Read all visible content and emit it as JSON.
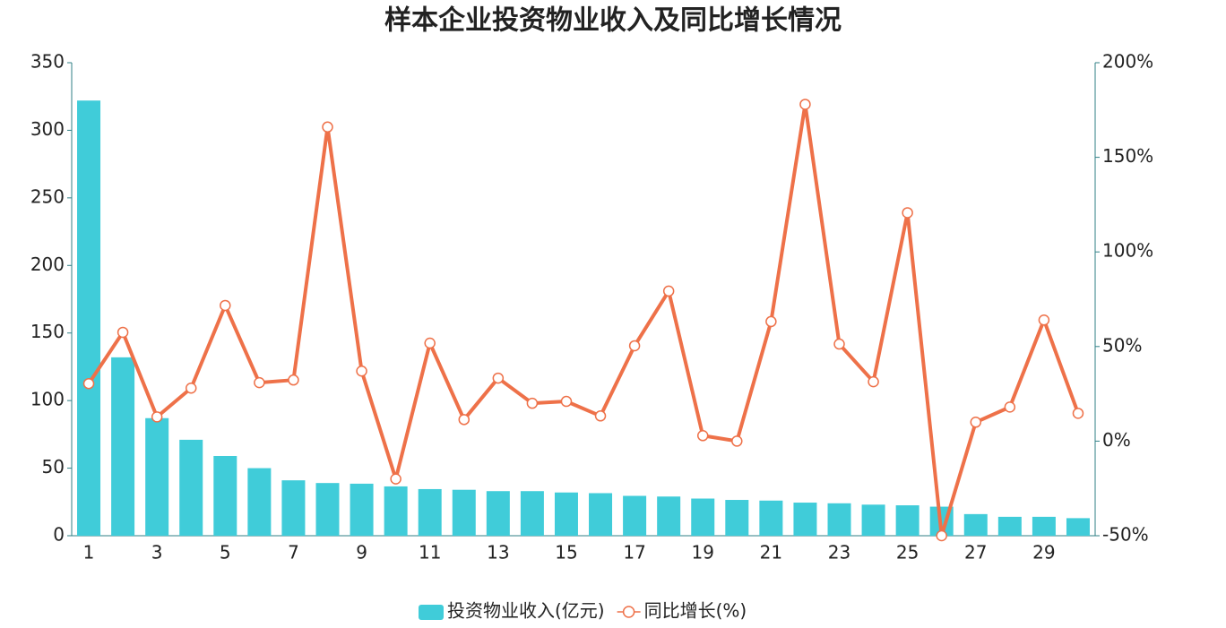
{
  "chart_data": {
    "type": "bar+line",
    "title": "样本企业投资物业收入及同比增长情况",
    "categories": [
      1,
      null,
      3,
      null,
      5,
      null,
      7,
      null,
      9,
      null,
      11,
      null,
      13,
      null,
      15,
      null,
      17,
      null,
      19,
      null,
      21,
      null,
      23,
      null,
      25,
      null,
      27,
      null,
      29,
      null
    ],
    "series": [
      {
        "name": "投资物业收入(亿元)",
        "type": "bar",
        "color": "#40ccd9",
        "values": [
          322,
          132,
          87,
          71,
          59,
          50,
          41,
          39,
          38.5,
          36.5,
          34.5,
          34,
          33,
          33,
          32,
          31.5,
          29.5,
          29,
          27.5,
          26.5,
          26,
          24.5,
          24,
          23,
          22.5,
          21.5,
          16,
          14,
          14,
          13
        ]
      },
      {
        "name": "同比增长(%)",
        "type": "line",
        "axis": "y2",
        "color": "#ee7149",
        "values": [
          30.4,
          57.5,
          12.8,
          28,
          71.7,
          30.9,
          32.3,
          166,
          37,
          -20,
          51.8,
          11.4,
          33.3,
          20,
          21,
          13.3,
          50.4,
          79.3,
          2.9,
          0,
          63.2,
          178,
          51.3,
          31.4,
          120.7,
          -50,
          10,
          18,
          64,
          14.7
        ]
      }
    ],
    "ylim": [
      0,
      350
    ],
    "yticks": [
      0,
      50,
      100,
      150,
      200,
      250,
      300,
      350
    ],
    "y2lim": [
      -50,
      200
    ],
    "y2ticks": [
      {
        "value": -50,
        "label": "-50%"
      },
      {
        "value": 0,
        "label": "0%"
      },
      {
        "value": 50,
        "label": "50%"
      },
      {
        "value": 100,
        "label": "100%"
      },
      {
        "value": 150,
        "label": "150%"
      },
      {
        "value": 200,
        "label": "200%"
      }
    ]
  }
}
